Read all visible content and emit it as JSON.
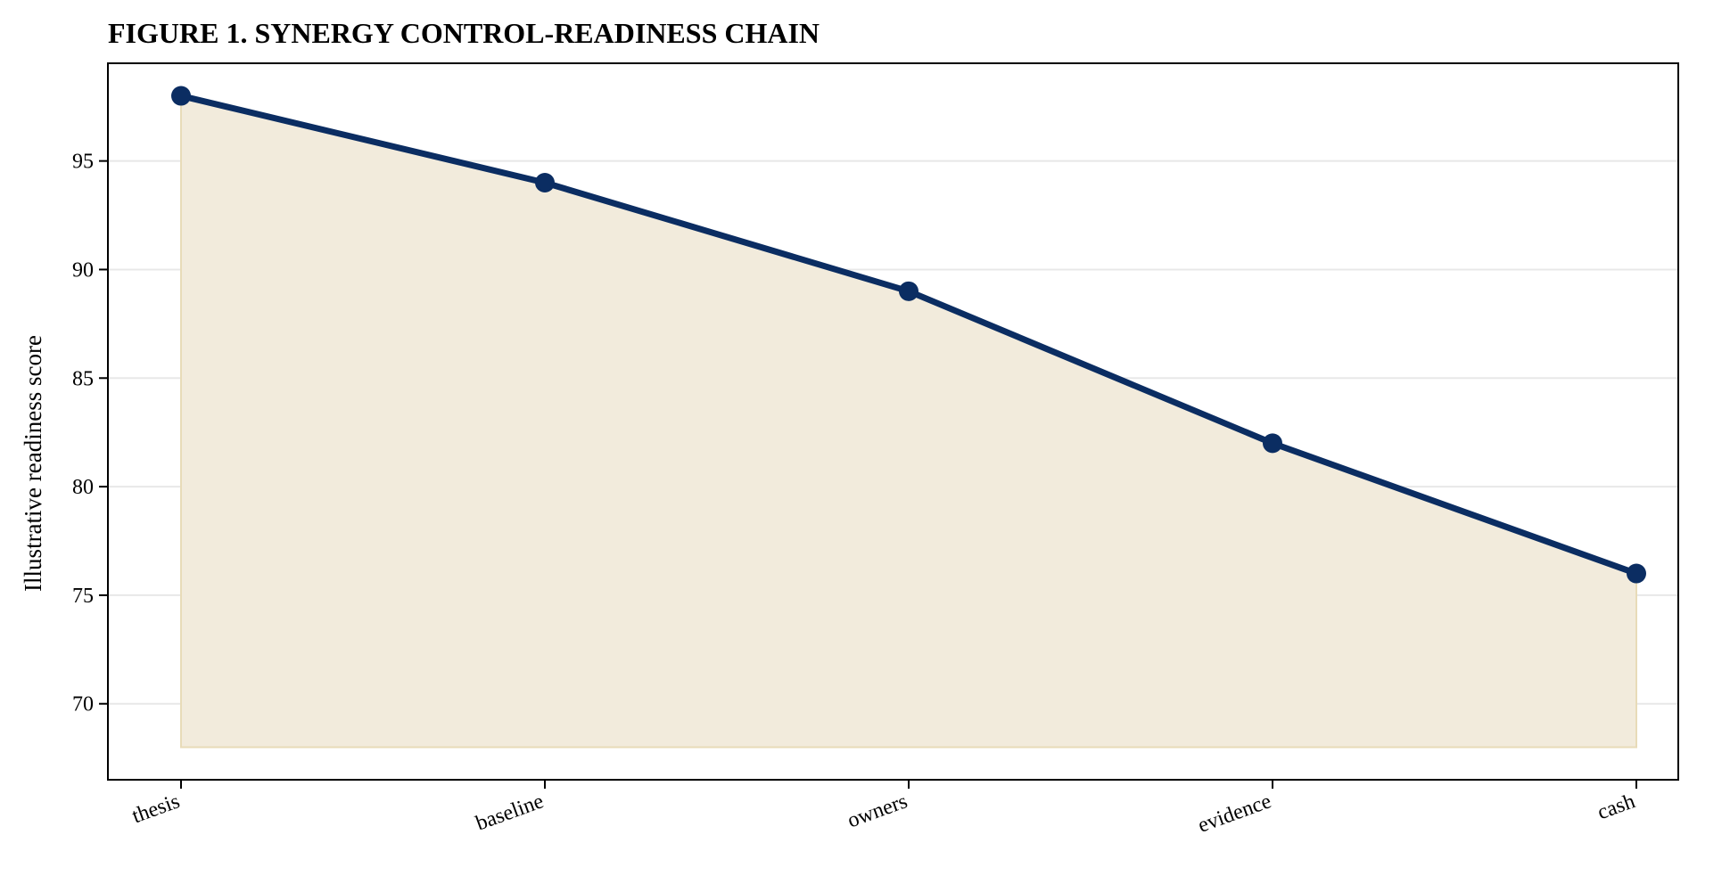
{
  "chart_data": {
    "type": "area",
    "title": "FIGURE 1. SYNERGY CONTROL-READINESS CHAIN",
    "xlabel": "",
    "ylabel": "Illustrative readiness score",
    "categories": [
      "thesis",
      "baseline",
      "owners",
      "evidence",
      "cash"
    ],
    "series": [
      {
        "values": [
          98,
          94,
          89,
          82,
          76
        ],
        "color": "#0b2d62",
        "marker": "circle"
      }
    ],
    "area_baseline": 68,
    "area_fill_color": "#f2ebdc",
    "area_edge_color": "#e8dbb8",
    "ylim": [
      66.5,
      99.5
    ],
    "yticks": [
      70,
      75,
      80,
      85,
      90,
      95
    ],
    "grid": "horizontal",
    "grid_color": "#e8e8e8",
    "x_tick_rotation": "slanted",
    "legend": "none"
  }
}
